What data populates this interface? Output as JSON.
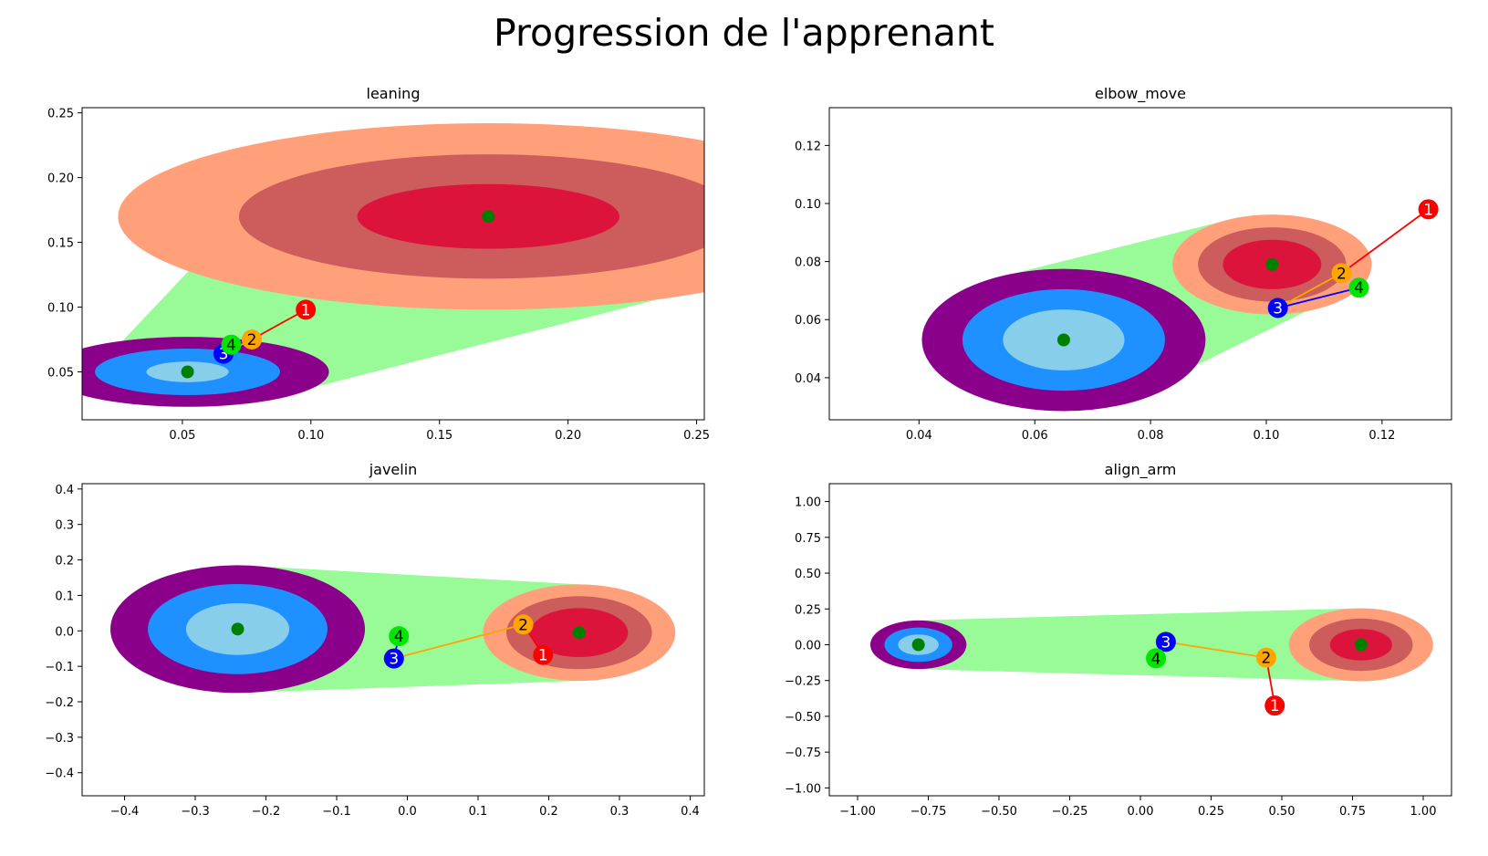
{
  "title": "Progression de l'apprenant",
  "colors": {
    "bg": "#ffffff",
    "band": "#98fb98",
    "start_outer": "#8b008b",
    "start_mid": "#1e90ff",
    "start_inner": "#87ceeb",
    "end_outer": "#ffa07a",
    "end_mid": "#cd5c5c",
    "end_inner": "#dc143c",
    "center": "#008000",
    "p1": "#ff0000",
    "p2": "#ffa500",
    "p3": "#0000ff",
    "p4": "#00e600"
  },
  "chart_data": [
    {
      "type": "scatter",
      "title": "leaning",
      "xlim": [
        0.011,
        0.253
      ],
      "ylim": [
        0.013,
        0.254
      ],
      "xticks": [
        0.05,
        0.1,
        0.15,
        0.2,
        0.25
      ],
      "xtick_labels": [
        "0.05",
        "0.10",
        "0.15",
        "0.20",
        "0.25"
      ],
      "yticks": [
        0.05,
        0.1,
        0.15,
        0.2,
        0.25
      ],
      "ytick_labels": [
        "0.05",
        "0.10",
        "0.15",
        "0.20",
        "0.25"
      ],
      "start": {
        "x": 0.052,
        "y": 0.05,
        "radii": [
          [
            0.055,
            0.027
          ],
          [
            0.036,
            0.018
          ],
          [
            0.016,
            0.008
          ]
        ]
      },
      "end": {
        "x": 0.169,
        "y": 0.17,
        "radii": [
          [
            0.144,
            0.072
          ],
          [
            0.097,
            0.048
          ],
          [
            0.051,
            0.025
          ]
        ]
      },
      "points": [
        {
          "label": "1",
          "x": 0.098,
          "y": 0.098
        },
        {
          "label": "2",
          "x": 0.077,
          "y": 0.075
        },
        {
          "label": "3",
          "x": 0.066,
          "y": 0.064
        },
        {
          "label": "4",
          "x": 0.069,
          "y": 0.071
        }
      ]
    },
    {
      "type": "scatter",
      "title": "elbow_move",
      "xlim": [
        0.0245,
        0.132
      ],
      "ylim": [
        0.0255,
        0.133
      ],
      "xticks": [
        0.04,
        0.06,
        0.08,
        0.1,
        0.12
      ],
      "xtick_labels": [
        "0.04",
        "0.06",
        "0.08",
        "0.10",
        "0.12"
      ],
      "yticks": [
        0.04,
        0.06,
        0.08,
        0.1,
        0.12
      ],
      "ytick_labels": [
        "0.04",
        "0.06",
        "0.08",
        "0.10",
        "0.12"
      ],
      "start": {
        "x": 0.065,
        "y": 0.053,
        "radii": [
          [
            0.0245,
            0.0245
          ],
          [
            0.0175,
            0.0175
          ],
          [
            0.0105,
            0.0105
          ]
        ]
      },
      "end": {
        "x": 0.101,
        "y": 0.079,
        "radii": [
          [
            0.0172,
            0.0172
          ],
          [
            0.0128,
            0.0128
          ],
          [
            0.0085,
            0.0085
          ]
        ]
      },
      "points": [
        {
          "label": "1",
          "x": 0.128,
          "y": 0.098
        },
        {
          "label": "2",
          "x": 0.113,
          "y": 0.076
        },
        {
          "label": "3",
          "x": 0.102,
          "y": 0.064
        },
        {
          "label": "4",
          "x": 0.116,
          "y": 0.071
        }
      ]
    },
    {
      "type": "scatter",
      "title": "javelin",
      "xlim": [
        -0.46,
        0.42
      ],
      "ylim": [
        -0.465,
        0.415
      ],
      "xticks": [
        -0.4,
        -0.3,
        -0.2,
        -0.1,
        0.0,
        0.1,
        0.2,
        0.3,
        0.4
      ],
      "xtick_labels": [
        "−0.4",
        "−0.3",
        "−0.2",
        "−0.1",
        "0.0",
        "0.1",
        "0.2",
        "0.3",
        "0.4"
      ],
      "yticks": [
        -0.4,
        -0.3,
        -0.2,
        -0.1,
        0.0,
        0.1,
        0.2,
        0.3,
        0.4
      ],
      "ytick_labels": [
        "−0.4",
        "−0.3",
        "−0.2",
        "−0.1",
        "0.0",
        "0.1",
        "0.2",
        "0.3",
        "0.4"
      ],
      "start": {
        "x": -0.24,
        "y": 0.005,
        "radii": [
          [
            0.18,
            0.18
          ],
          [
            0.127,
            0.127
          ],
          [
            0.073,
            0.073
          ]
        ]
      },
      "end": {
        "x": 0.243,
        "y": -0.005,
        "radii": [
          [
            0.136,
            0.136
          ],
          [
            0.103,
            0.103
          ],
          [
            0.069,
            0.069
          ]
        ]
      },
      "points": [
        {
          "label": "1",
          "x": 0.192,
          "y": -0.068
        },
        {
          "label": "2",
          "x": 0.164,
          "y": 0.018
        },
        {
          "label": "3",
          "x": -0.019,
          "y": -0.078
        },
        {
          "label": "4",
          "x": -0.012,
          "y": -0.015
        }
      ]
    },
    {
      "type": "scatter",
      "title": "align_arm",
      "xlim": [
        -1.1,
        1.1
      ],
      "ylim": [
        -1.055,
        1.125
      ],
      "xticks": [
        -1.0,
        -0.75,
        -0.5,
        -0.25,
        0.0,
        0.25,
        0.5,
        0.75,
        1.0
      ],
      "xtick_labels": [
        "−1.00",
        "−0.75",
        "−0.50",
        "−0.25",
        "0.00",
        "0.25",
        "0.50",
        "0.75",
        "1.00"
      ],
      "yticks": [
        -1.0,
        -0.75,
        -0.5,
        -0.25,
        0.0,
        0.25,
        0.5,
        0.75,
        1.0
      ],
      "ytick_labels": [
        "−1.00",
        "−0.75",
        "−0.50",
        "−0.25",
        "0.00",
        "0.25",
        "0.50",
        "0.75",
        "1.00"
      ],
      "start": {
        "x": -0.785,
        "y": 0.0,
        "radii": [
          [
            0.17,
            0.17
          ],
          [
            0.12,
            0.12
          ],
          [
            0.072,
            0.072
          ]
        ]
      },
      "end": {
        "x": 0.78,
        "y": 0.0,
        "radii": [
          [
            0.255,
            0.255
          ],
          [
            0.183,
            0.183
          ],
          [
            0.11,
            0.11
          ]
        ]
      },
      "points": [
        {
          "label": "1",
          "x": 0.475,
          "y": -0.425
        },
        {
          "label": "2",
          "x": 0.445,
          "y": -0.09
        },
        {
          "label": "3",
          "x": 0.09,
          "y": 0.02
        },
        {
          "label": "4",
          "x": 0.055,
          "y": -0.095
        }
      ]
    }
  ]
}
